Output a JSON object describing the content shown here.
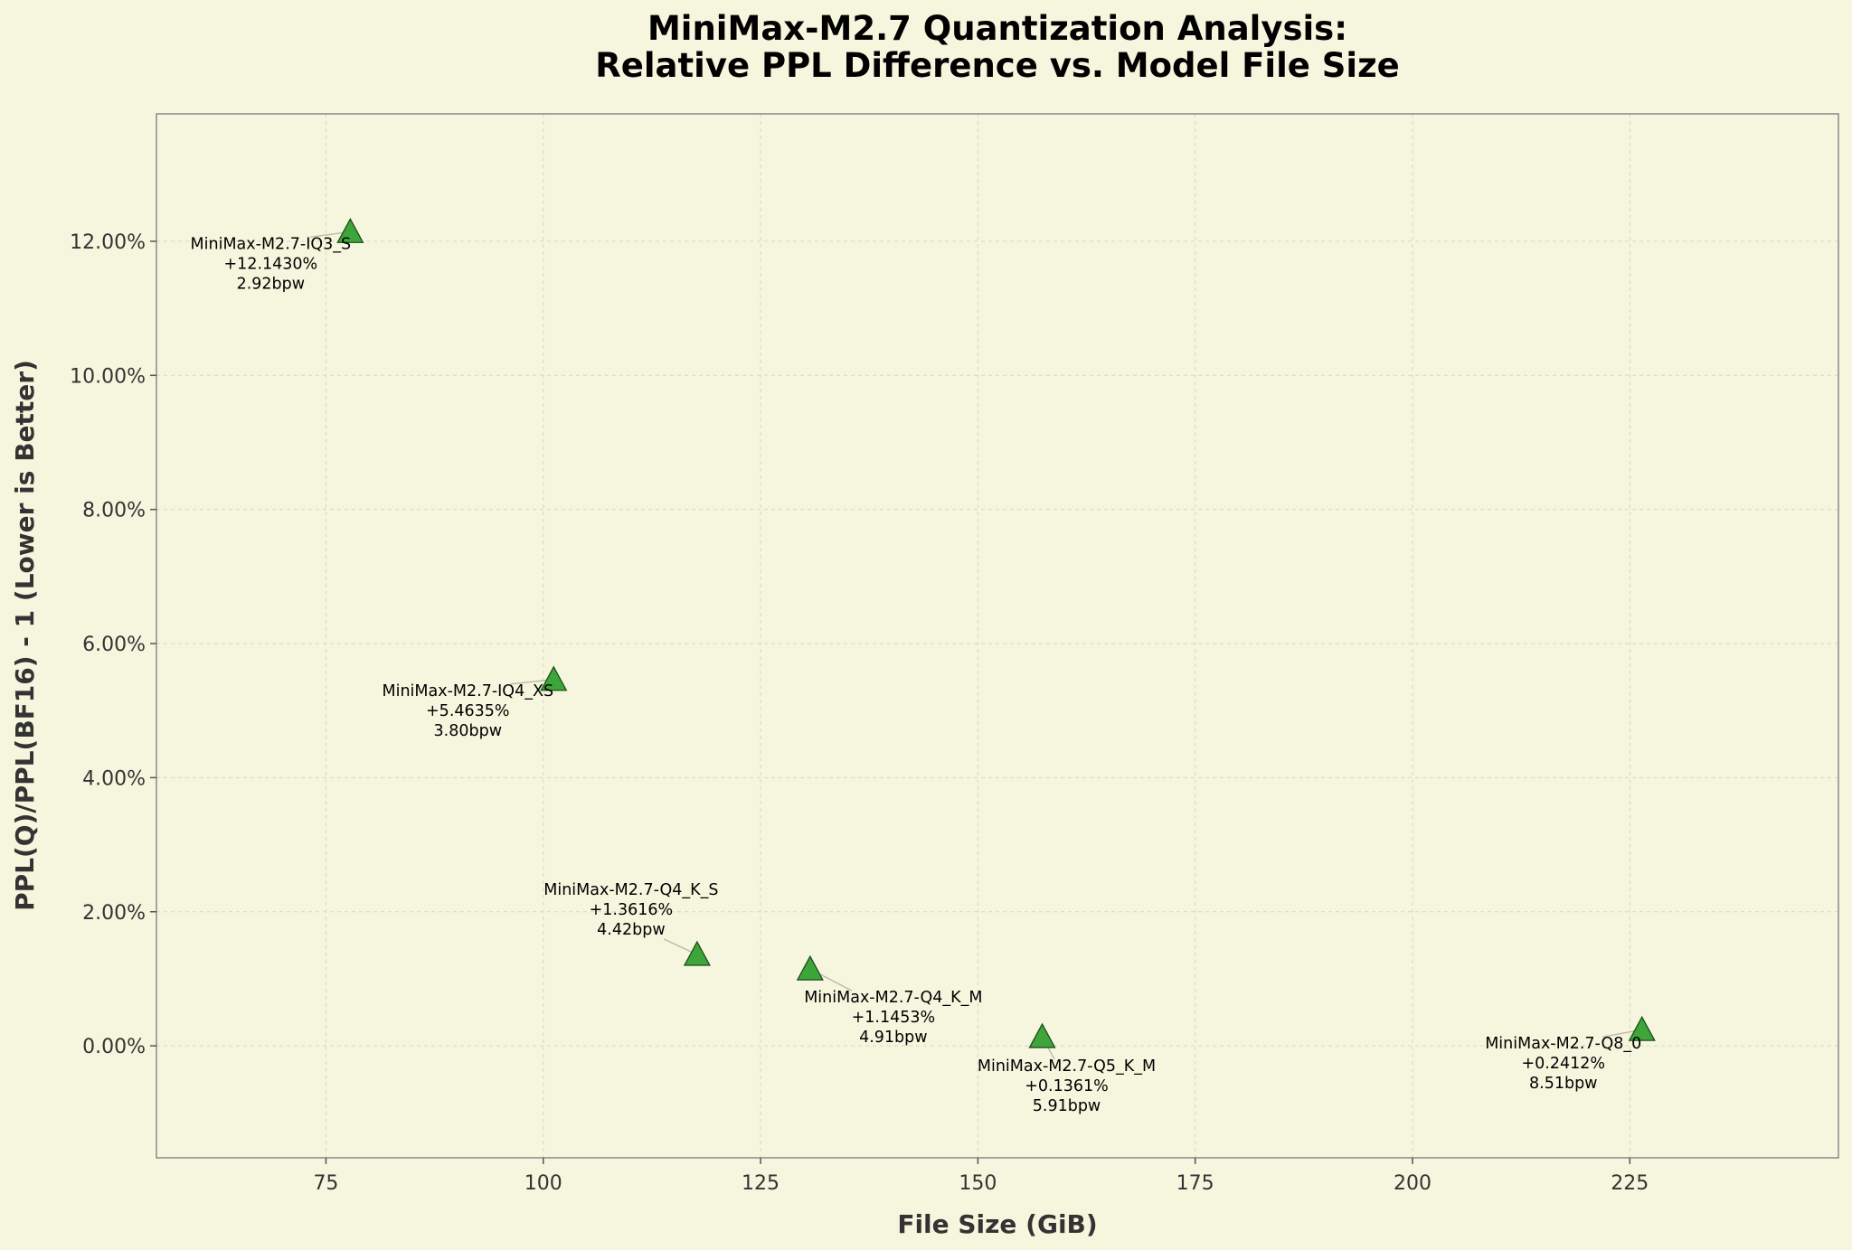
{
  "chart_data": {
    "type": "scatter",
    "title": [
      "MiniMax-M2.7 Quantization Analysis:",
      "Relative PPL Difference vs. Model File Size"
    ],
    "xlabel": "File Size (GiB)",
    "ylabel": "PPL(Q)/PPL(BF16) - 1 (Lower is Better)",
    "xlim": [
      55.5,
      249
    ],
    "ylim": [
      -1.67,
      13.9
    ],
    "xticks": [
      75,
      100,
      125,
      150,
      175,
      200,
      225
    ],
    "xtick_labels": [
      "75",
      "100",
      "125",
      "150",
      "175",
      "200",
      "225"
    ],
    "yticks": [
      0,
      2,
      4,
      6,
      8,
      10,
      12
    ],
    "ytick_labels": [
      "0.00%",
      "2.00%",
      "4.00%",
      "6.00%",
      "8.00%",
      "10.00%",
      "12.00%"
    ],
    "grid": true,
    "marker": "triangle",
    "marker_color": "#3ea53a",
    "background": "#f6f6de",
    "points": [
      {
        "x": 77.8,
        "y": 12.143,
        "label": [
          "MiniMax-M2.7-IQ3_S",
          "+12.1430%",
          "2.92bpw"
        ]
      },
      {
        "x": 101.2,
        "y": 5.4635,
        "label": [
          "MiniMax-M2.7-IQ4_XS",
          "+5.4635%",
          "3.80bpw"
        ]
      },
      {
        "x": 117.7,
        "y": 1.3616,
        "label": [
          "MiniMax-M2.7-Q4_K_S",
          "+1.3616%",
          "4.42bpw"
        ]
      },
      {
        "x": 130.7,
        "y": 1.1453,
        "label": [
          "MiniMax-M2.7-Q4_K_M",
          "+1.1453%",
          "4.91bpw"
        ]
      },
      {
        "x": 157.4,
        "y": 0.1361,
        "label": [
          "MiniMax-M2.7-Q5_K_M",
          "+0.1361%",
          "5.91bpw"
        ]
      },
      {
        "x": 226.4,
        "y": 0.2412,
        "label": [
          "MiniMax-M2.7-Q8_0",
          "+0.2412%",
          "8.51bpw"
        ]
      }
    ]
  }
}
